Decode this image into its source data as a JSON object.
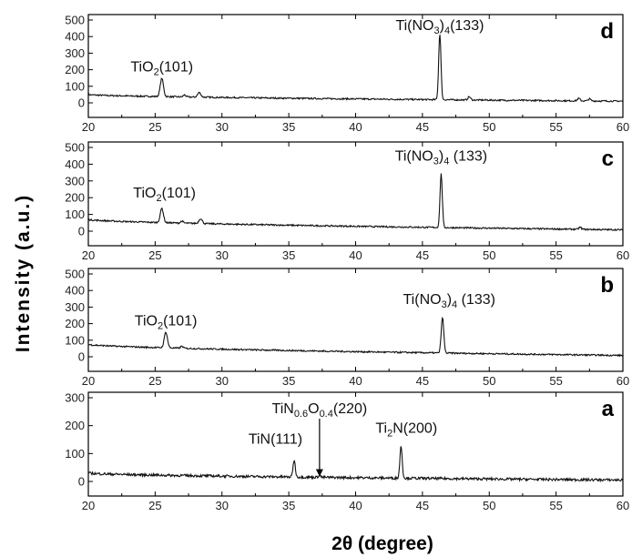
{
  "chart_data": {
    "type": "line",
    "xlabel": "2θ (degree)",
    "ylabel": "Intensity (a.u.)",
    "xlim": [
      20,
      60
    ],
    "x_ticks": [
      "20",
      "25",
      "30",
      "35",
      "40",
      "45",
      "50",
      "55",
      "60"
    ],
    "panels": [
      {
        "letter": "d",
        "ylim": [
          0,
          500
        ],
        "y_ticks": [
          "0",
          "100",
          "200",
          "300",
          "400",
          "500"
        ],
        "baseline_start": 50,
        "baseline_end": 10,
        "peaks": [
          {
            "x": 25.5,
            "height": 110,
            "width": 0.25
          },
          {
            "x": 27.2,
            "height": 12,
            "width": 0.2
          },
          {
            "x": 28.3,
            "height": 28,
            "width": 0.25
          },
          {
            "x": 46.3,
            "height": 400,
            "width": 0.18
          },
          {
            "x": 48.5,
            "height": 20,
            "width": 0.2
          },
          {
            "x": 56.7,
            "height": 15,
            "width": 0.2
          },
          {
            "x": 57.5,
            "height": 12,
            "width": 0.2
          }
        ],
        "annotations": [
          {
            "text": "TiO",
            "sub": "2",
            "after": "(101)",
            "x": 25.5,
            "y": 190
          },
          {
            "text": "Ti(NO",
            "sub": "3",
            "after": ")",
            "sub2": "4",
            "after2": "(133)",
            "x": 46.3,
            "y": 440
          }
        ]
      },
      {
        "letter": "c",
        "ylim": [
          0,
          500
        ],
        "y_ticks": [
          "0",
          "100",
          "200",
          "300",
          "400",
          "500"
        ],
        "baseline_start": 70,
        "baseline_end": 8,
        "peaks": [
          {
            "x": 25.5,
            "height": 85,
            "width": 0.25
          },
          {
            "x": 27.0,
            "height": 12,
            "width": 0.2
          },
          {
            "x": 28.4,
            "height": 30,
            "width": 0.25
          },
          {
            "x": 46.4,
            "height": 320,
            "width": 0.18
          },
          {
            "x": 56.8,
            "height": 12,
            "width": 0.2
          }
        ],
        "annotations": [
          {
            "text": "TiO",
            "sub": "2",
            "after": "(101)",
            "x": 25.7,
            "y": 200
          },
          {
            "text": "Ti(NO",
            "sub": "3",
            "after": ")",
            "sub2": "4",
            "after2": " (133)",
            "x": 46.4,
            "y": 420
          }
        ]
      },
      {
        "letter": "b",
        "ylim": [
          0,
          500
        ],
        "y_ticks": [
          "0",
          "100",
          "200",
          "300",
          "400",
          "500"
        ],
        "baseline_start": 75,
        "baseline_end": 8,
        "peaks": [
          {
            "x": 25.8,
            "height": 95,
            "width": 0.25
          },
          {
            "x": 27.0,
            "height": 12,
            "width": 0.2
          },
          {
            "x": 46.5,
            "height": 215,
            "width": 0.2
          }
        ],
        "annotations": [
          {
            "text": "TiO",
            "sub": "2",
            "after": "(101)",
            "x": 25.8,
            "y": 190
          },
          {
            "text": "Ti(NO",
            "sub": "3",
            "after": ")",
            "sub2": "4",
            "after2": " (133)",
            "x": 47.0,
            "y": 320
          }
        ]
      },
      {
        "letter": "a",
        "ylim": [
          0,
          300
        ],
        "y_ticks": [
          "0",
          "100",
          "200",
          "300"
        ],
        "y_tick_values": [
          0,
          100,
          200,
          300
        ],
        "baseline_start": 30,
        "baseline_end": 5,
        "peaks": [
          {
            "x": 35.4,
            "height": 60,
            "width": 0.18
          },
          {
            "x": 37.3,
            "height": 10,
            "width": 0.15
          },
          {
            "x": 43.4,
            "height": 115,
            "width": 0.18
          }
        ],
        "annotations": [
          {
            "text": "TiN(111)",
            "x": 34.0,
            "y": 135
          },
          {
            "text": "TiN",
            "sub": "0.6",
            "after": "O",
            "sub2": "0.4",
            "after2": "(220)",
            "x": 37.3,
            "y": 245
          },
          {
            "text": "Ti",
            "sub": "2",
            "after": "N(200)",
            "x": 43.8,
            "y": 175
          }
        ]
      }
    ],
    "arrow": {
      "panel": "a",
      "x": 37.3,
      "y_from": 225,
      "y_to": 18
    }
  }
}
